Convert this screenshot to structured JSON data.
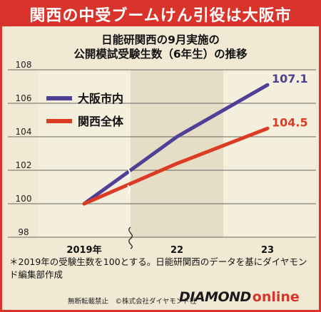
{
  "banner": "関西の中受ブームけん引役は大阪市",
  "subtitle_line1": "日能研関西の9月実施の",
  "subtitle_line2": "公開模試受験生数（6年生）の推移",
  "note": "＊2019年の受験生数を100とする。日能研関西のデータを基にダイヤモンド編集部作成",
  "footer_copyright": "無断転載禁止　©株式会社ダイヤモンド社",
  "logo_main": "DIAMOND",
  "logo_sub": "online",
  "colors": {
    "series_osaka": "#4e3f97",
    "series_kansai": "#db3a23",
    "accent": "#d9342b"
  },
  "chart_data": {
    "type": "line",
    "categories": [
      "2019年",
      "22",
      "23"
    ],
    "ylim": [
      98,
      108
    ],
    "yticks": [
      98,
      100,
      102,
      104,
      106,
      108
    ],
    "axis_break": true,
    "series": [
      {
        "name": "大阪市内",
        "values": [
          100,
          104.0,
          107.1
        ],
        "end_label": "107.1"
      },
      {
        "name": "関西全体",
        "values": [
          100,
          102.4,
          104.5
        ],
        "end_label": "104.5"
      }
    ],
    "legend": "top-left"
  }
}
